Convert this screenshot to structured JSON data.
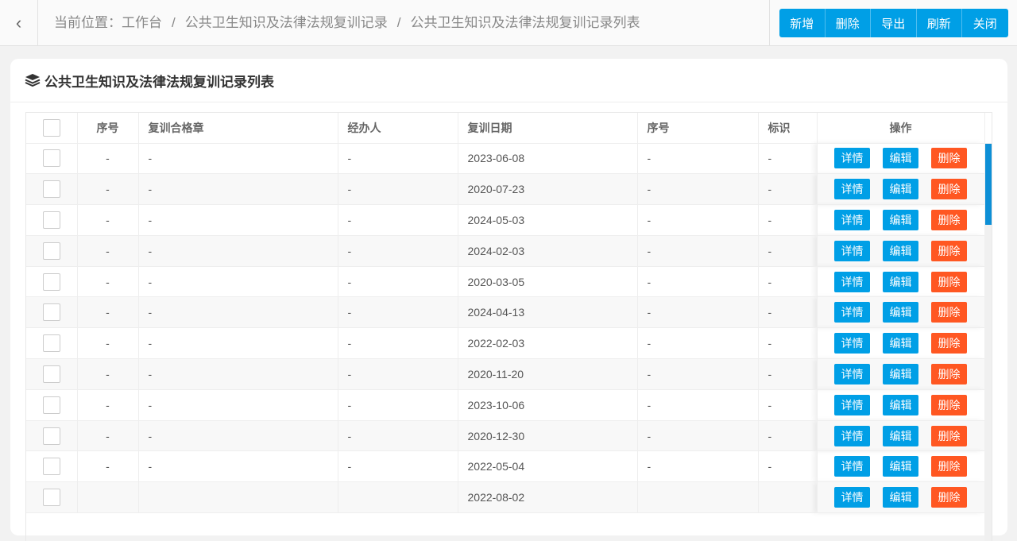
{
  "header": {
    "back_icon": "chevron-left-icon",
    "location_label": "当前位置：",
    "breadcrumb": [
      "工作台",
      "公共卫生知识及法律法规复训记录",
      "公共卫生知识及法律法规复训记录列表"
    ],
    "separator": "/"
  },
  "toolbar": {
    "add": "新增",
    "delete": "删除",
    "export": "导出",
    "refresh": "刷新",
    "close": "关闭"
  },
  "card": {
    "title": "公共卫生知识及法律法规复训记录列表",
    "icon": "layers-icon"
  },
  "table": {
    "columns": [
      "序号",
      "复训合格章",
      "经办人",
      "复训日期",
      "序号",
      "标识",
      "操作"
    ],
    "actions": {
      "detail": "详情",
      "edit": "编辑",
      "delete": "删除"
    },
    "rows": [
      {
        "no": "-",
        "stamp": "-",
        "handler": "-",
        "date": "2023-06-08",
        "no2": "-",
        "flag": "-"
      },
      {
        "no": "-",
        "stamp": "-",
        "handler": "-",
        "date": "2020-07-23",
        "no2": "-",
        "flag": "-"
      },
      {
        "no": "-",
        "stamp": "-",
        "handler": "-",
        "date": "2024-05-03",
        "no2": "-",
        "flag": "-"
      },
      {
        "no": "-",
        "stamp": "-",
        "handler": "-",
        "date": "2024-02-03",
        "no2": "-",
        "flag": "-"
      },
      {
        "no": "-",
        "stamp": "-",
        "handler": "-",
        "date": "2020-03-05",
        "no2": "-",
        "flag": "-"
      },
      {
        "no": "-",
        "stamp": "-",
        "handler": "-",
        "date": "2024-04-13",
        "no2": "-",
        "flag": "-"
      },
      {
        "no": "-",
        "stamp": "-",
        "handler": "-",
        "date": "2022-02-03",
        "no2": "-",
        "flag": "-"
      },
      {
        "no": "-",
        "stamp": "-",
        "handler": "-",
        "date": "2020-11-20",
        "no2": "-",
        "flag": "-"
      },
      {
        "no": "-",
        "stamp": "-",
        "handler": "-",
        "date": "2023-10-06",
        "no2": "-",
        "flag": "-"
      },
      {
        "no": "-",
        "stamp": "-",
        "handler": "-",
        "date": "2020-12-30",
        "no2": "-",
        "flag": "-"
      },
      {
        "no": "-",
        "stamp": "-",
        "handler": "-",
        "date": "2022-05-04",
        "no2": "-",
        "flag": "-"
      },
      {
        "no": "",
        "stamp": "",
        "handler": "",
        "date": "2022-08-02",
        "no2": "",
        "flag": ""
      }
    ]
  },
  "colors": {
    "primary": "#009fe6",
    "danger": "#ff5722"
  }
}
